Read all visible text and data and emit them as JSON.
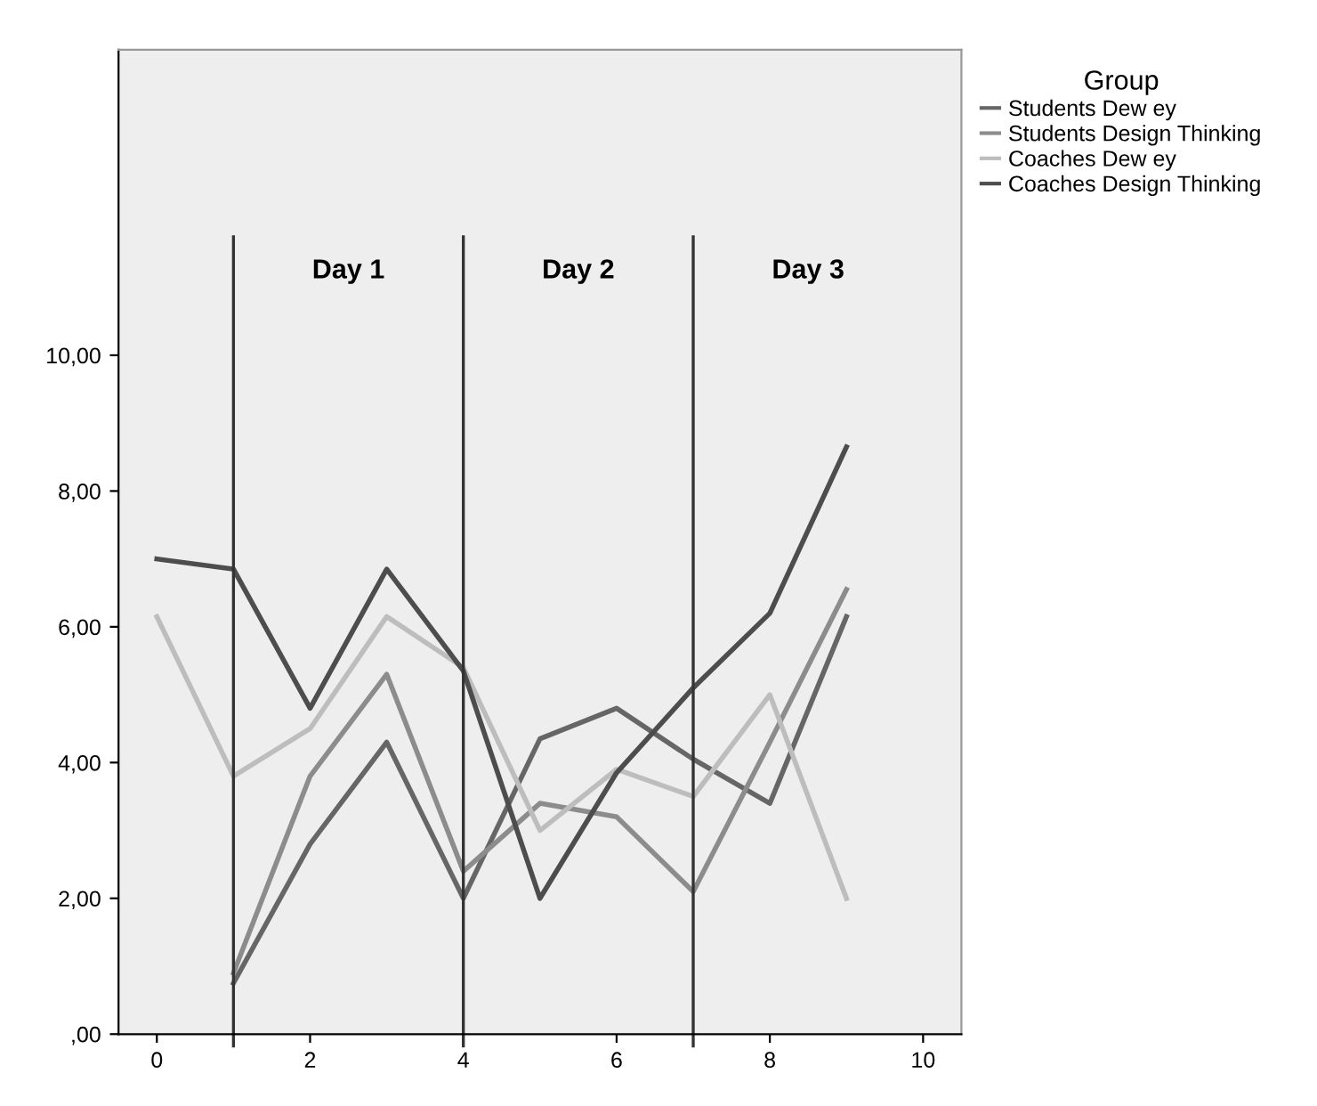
{
  "chart_data": {
    "type": "line",
    "x": [
      0,
      1,
      2,
      3,
      4,
      5,
      6,
      7,
      8,
      9
    ],
    "series": [
      {
        "name": "Students Dew ey",
        "color": "#666666",
        "values": [
          null,
          0.75,
          2.8,
          4.3,
          2.0,
          4.35,
          4.8,
          4.05,
          3.4,
          6.15
        ]
      },
      {
        "name": "Students Design Thinking",
        "color": "#8c8c8c",
        "values": [
          null,
          0.9,
          3.8,
          5.3,
          2.4,
          3.4,
          3.2,
          2.1,
          4.3,
          6.55
        ]
      },
      {
        "name": "Coaches Dew ey",
        "color": "#bdbdbd",
        "values": [
          6.15,
          3.8,
          4.5,
          6.15,
          5.4,
          3.0,
          3.9,
          3.5,
          5.0,
          2.0
        ]
      },
      {
        "name": "Coaches Design Thinking",
        "color": "#4d4d4d",
        "values": [
          7.0,
          6.85,
          4.8,
          6.85,
          5.35,
          2.0,
          3.85,
          5.1,
          6.2,
          8.65
        ]
      }
    ],
    "legend_title": "Group",
    "legend": "top right",
    "xlim": [
      -0.5,
      10.5
    ],
    "xticks": [
      0,
      2,
      4,
      6,
      8,
      10
    ],
    "ylim": [
      0,
      14.5
    ],
    "yticks": [
      {
        "value": 0,
        "label": ",00"
      },
      {
        "value": 2,
        "label": "2,00"
      },
      {
        "value": 4,
        "label": "4,00"
      },
      {
        "value": 6,
        "label": "6,00"
      },
      {
        "value": 8,
        "label": "8,00"
      },
      {
        "value": 10,
        "label": "10,00"
      }
    ],
    "ref_lines": [
      {
        "axis": "x",
        "value": 1,
        "color": "#333333"
      },
      {
        "axis": "x",
        "value": 4,
        "color": "#333333"
      },
      {
        "axis": "x",
        "value": 7,
        "color": "#333333"
      }
    ],
    "annotations": [
      "Day 1",
      "Day 2",
      "Day 3"
    ],
    "grid": false,
    "marker": "none",
    "line_style": "solid"
  }
}
